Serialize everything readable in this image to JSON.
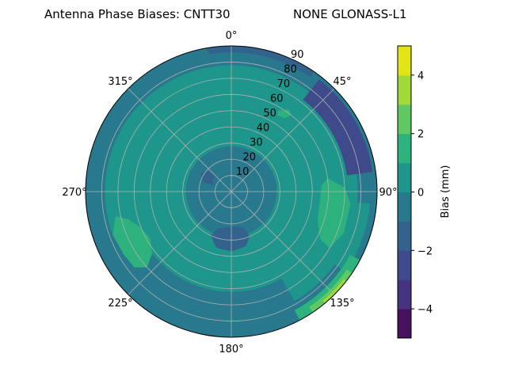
{
  "chart_data": {
    "type": "polar-contour",
    "title_left": "Antenna Phase Biases: CNTT30",
    "title_right": "NONE GLONASS-L1",
    "angular_axis": {
      "direction": "clockwise",
      "zero_location": "north",
      "tick_labels": [
        {
          "az": 0,
          "label": "0°"
        },
        {
          "az": 45,
          "label": "45°"
        },
        {
          "az": 90,
          "label": "90°"
        },
        {
          "az": 135,
          "label": "135°"
        },
        {
          "az": 180,
          "label": "180°"
        },
        {
          "az": 225,
          "label": "225°"
        },
        {
          "az": 270,
          "label": "270°"
        },
        {
          "az": 315,
          "label": "315°"
        }
      ]
    },
    "radial_axis": {
      "range": [
        0,
        90
      ],
      "label_azimuth": 25,
      "tick_labels": [
        "10",
        "20",
        "30",
        "40",
        "50",
        "60",
        "70",
        "80",
        "90"
      ],
      "ticks": [
        10,
        20,
        30,
        40,
        50,
        60,
        70,
        80,
        90
      ]
    },
    "grid": true,
    "colorbar": {
      "label": "Bias (mm)",
      "range": [
        -5,
        5
      ],
      "levels": [
        -5,
        -4,
        -3,
        -2,
        -1,
        0,
        1,
        2,
        3,
        4,
        5
      ],
      "colors": [
        "#46115f",
        "#45347f",
        "#3e4a89",
        "#33638d",
        "#28798e",
        "#1f968b",
        "#2db27d",
        "#5ec962",
        "#a0da39",
        "#e2e418"
      ],
      "tick_values": [
        -4,
        -2,
        0,
        2,
        4
      ],
      "tick_labels": [
        "−4",
        "−2",
        "0",
        "2",
        "4"
      ],
      "placement": "right"
    },
    "background_level": 0.5,
    "regions": [
      {
        "kind": "band",
        "level": -0.5,
        "az": [
          0,
          360
        ],
        "zen": [
          78,
          90
        ]
      },
      {
        "kind": "band",
        "level": 0.5,
        "az": [
          95,
          125
        ],
        "zen": [
          78,
          86
        ]
      },
      {
        "kind": "band",
        "level": -2.5,
        "az": [
          38,
          82
        ],
        "zen": [
          72,
          88
        ]
      },
      {
        "kind": "band",
        "level": -1.5,
        "az": [
          350,
          395
        ],
        "zen": [
          86,
          90
        ]
      },
      {
        "kind": "band",
        "level": 1.5,
        "az": [
          118,
          152
        ],
        "zen": [
          83,
          90
        ]
      },
      {
        "kind": "band",
        "level": 2.5,
        "az": [
          124,
          146
        ],
        "zen": [
          86,
          90
        ]
      },
      {
        "kind": "band",
        "level": 3.5,
        "az": [
          128,
          140
        ],
        "zen": [
          88,
          90
        ]
      },
      {
        "kind": "band",
        "level": -0.5,
        "az": [
          150,
          250
        ],
        "zen": [
          62,
          80
        ]
      },
      {
        "kind": "band",
        "level": -0.5,
        "az": [
          0,
          360
        ],
        "zen": [
          0,
          28
        ]
      },
      {
        "kind": "poly",
        "level": -1.5,
        "pts": [
          [
            160,
            24
          ],
          [
            170,
            22
          ],
          [
            185,
            22
          ],
          [
            200,
            24
          ],
          [
            205,
            30
          ],
          [
            195,
            36
          ],
          [
            180,
            37
          ],
          [
            165,
            35
          ],
          [
            158,
            30
          ]
        ]
      },
      {
        "kind": "poly",
        "level": -1.5,
        "pts": [
          [
            290,
            12
          ],
          [
            305,
            14
          ],
          [
            315,
            12
          ],
          [
            312,
            20
          ],
          [
            300,
            22
          ],
          [
            288,
            18
          ]
        ]
      },
      {
        "kind": "poly",
        "level": 1.5,
        "pts": [
          [
            232,
            76
          ],
          [
            240,
            77
          ],
          [
            250,
            78
          ],
          [
            258,
            73
          ],
          [
            255,
            66
          ],
          [
            248,
            60
          ],
          [
            240,
            58
          ],
          [
            232,
            62
          ],
          [
            228,
            70
          ]
        ]
      },
      {
        "kind": "poly",
        "level": 1.5,
        "pts": [
          [
            82,
            60
          ],
          [
            88,
            70
          ],
          [
            96,
            74
          ],
          [
            110,
            74
          ],
          [
            120,
            70
          ],
          [
            118,
            62
          ],
          [
            108,
            56
          ],
          [
            95,
            55
          ],
          [
            86,
            56
          ]
        ]
      },
      {
        "kind": "poly",
        "level": 1.5,
        "pts": [
          [
            30,
            58
          ],
          [
            35,
            62
          ],
          [
            38,
            60
          ],
          [
            36,
            56
          ],
          [
            31,
            55
          ]
        ]
      }
    ]
  }
}
